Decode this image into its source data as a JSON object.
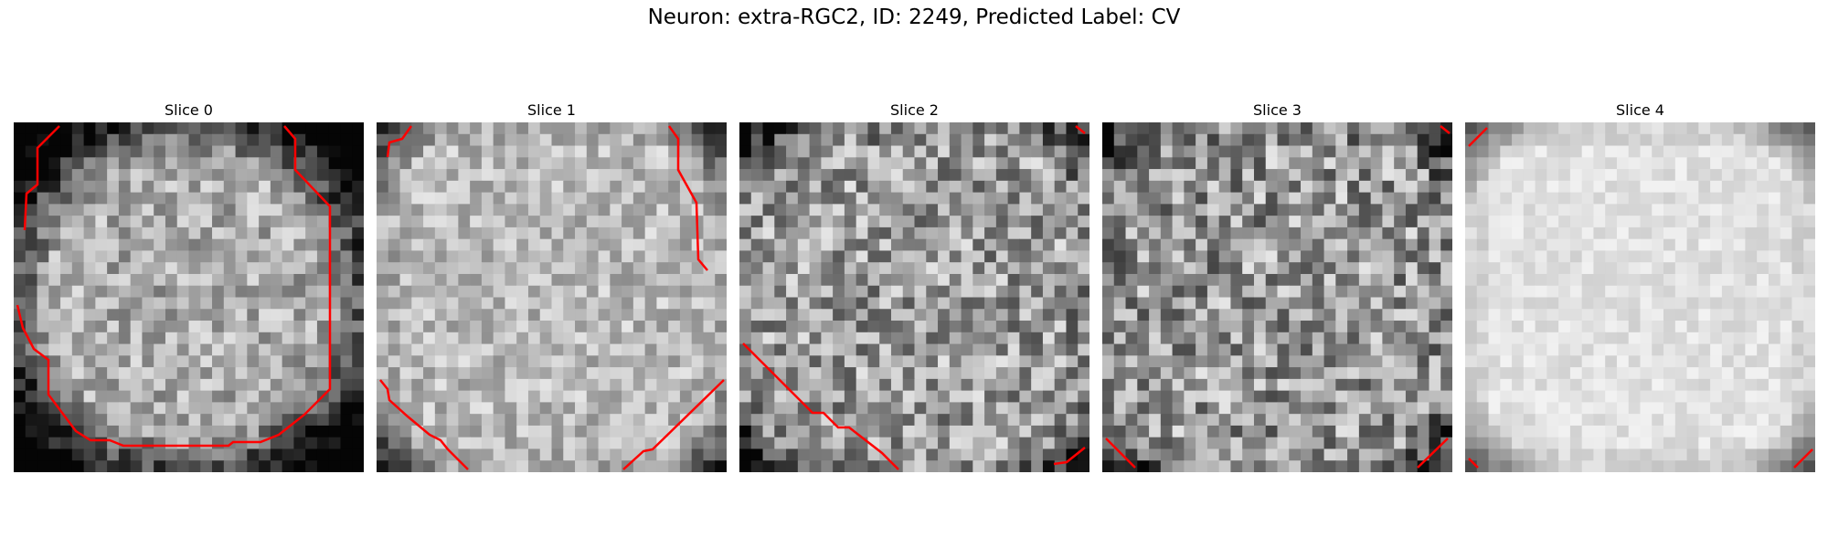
{
  "figure": {
    "title": "Neuron: extra-RGC2, ID: 2249, Predicted Label: CV"
  },
  "style": {
    "contour_color": "#ff0000"
  },
  "slices": [
    {
      "label": "Slice 0",
      "seed": 11,
      "base": 170,
      "noise": 55,
      "edge": "ring"
    },
    {
      "label": "Slice 1",
      "seed": 23,
      "base": 185,
      "noise": 45,
      "edge": "corners"
    },
    {
      "label": "Slice 2",
      "seed": 37,
      "base": 155,
      "noise": 75,
      "edge": "corners"
    },
    {
      "label": "Slice 3",
      "seed": 51,
      "base": 150,
      "noise": 80,
      "edge": "corners"
    },
    {
      "label": "Slice 4",
      "seed": 67,
      "base": 225,
      "noise": 18,
      "edge": "corners"
    }
  ]
}
